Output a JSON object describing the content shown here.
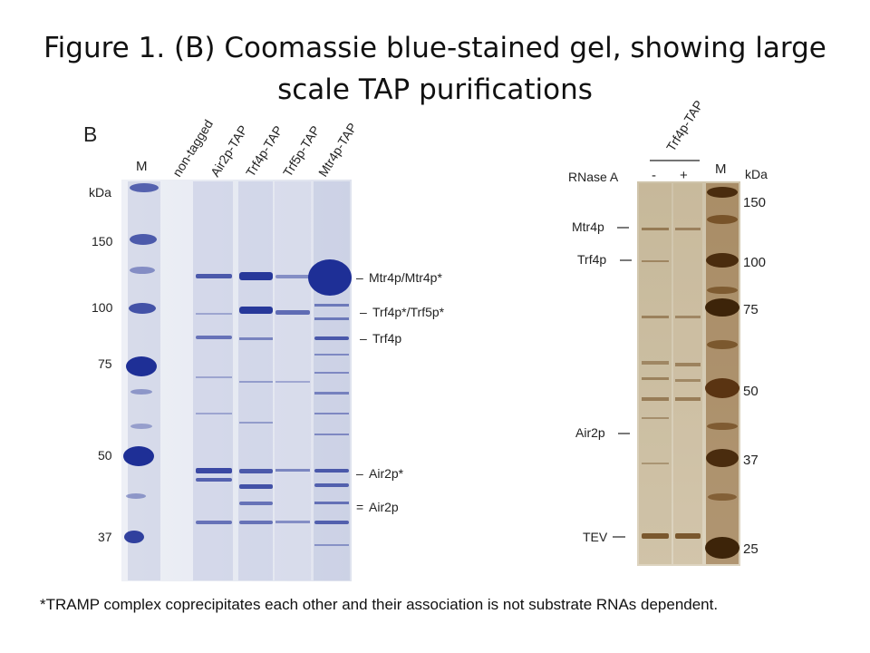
{
  "slide": {
    "title": "Figure 1. (B) Coomassie blue-stained gel, showing large scale TAP purifications",
    "caption": "*TRAMP complex coprecipitates each other and their association is not substrate RNAs dependent."
  },
  "gel_left": {
    "panel_label": "B",
    "marker_lane_label": "M",
    "unit_label": "kDa",
    "lane_labels": [
      "non-tagged",
      "Air2p-TAP",
      "Trf4p-TAP",
      "Trf5p-TAP",
      "Mtr4p-TAP"
    ],
    "mw_ticks": [
      "150",
      "100",
      "75",
      "50",
      "37"
    ],
    "band_labels": [
      "Mtr4p/Mtr4p*",
      "Trf4p*/Trf5p*",
      "Trf4p",
      "Air2p*",
      "Air2p"
    ],
    "band_label_prefixes": [
      "–",
      "–",
      "–",
      "–",
      "="
    ],
    "stain_color": "#1e2f96",
    "background_color": "#e4e7f1"
  },
  "gel_right": {
    "construct_label": "Trf4p-TAP",
    "treatment_label": "RNase A",
    "lane_labels": [
      "-",
      "+"
    ],
    "marker_lane_label": "M",
    "unit_label": "kDa",
    "mw_ticks": [
      "150",
      "100",
      "75",
      "50",
      "37",
      "25"
    ],
    "band_labels": [
      "Mtr4p",
      "Trf4p",
      "Air2p",
      "TEV"
    ],
    "stain_color": "#6b4519",
    "background_color": "#d6cdb7"
  }
}
